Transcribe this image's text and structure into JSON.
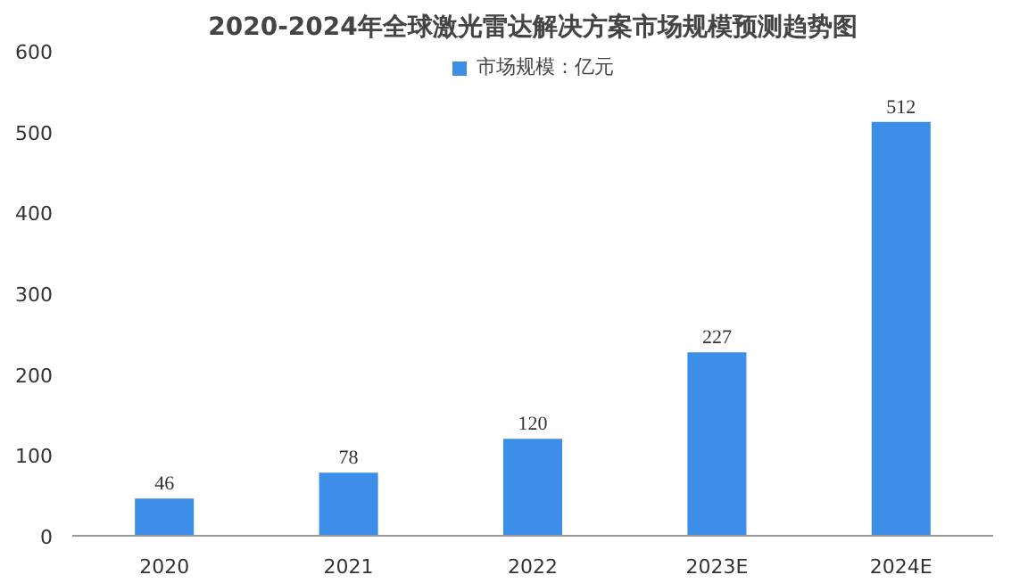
{
  "chart_data": {
    "type": "bar",
    "title": "2020-2024年全球激光雷达解决方案市场规模预测趋势图",
    "categories": [
      "2020",
      "2021",
      "2022",
      "2023E",
      "2024E"
    ],
    "series": [
      {
        "name": "市场规模：亿元",
        "color": "#3d8ee8",
        "values": [
          46,
          78,
          120,
          227,
          512
        ]
      }
    ],
    "ylim": [
      0,
      600
    ],
    "yticks": [
      0,
      100,
      200,
      300,
      400,
      500,
      600
    ],
    "grid": false,
    "legend": "top",
    "data_labels": true
  }
}
